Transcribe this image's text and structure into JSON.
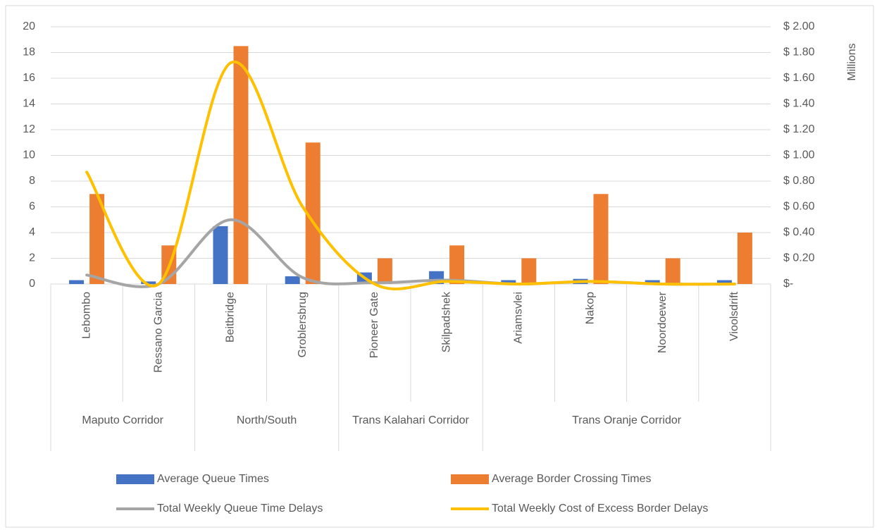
{
  "chart_data": {
    "type": "combo",
    "groups": [
      {
        "label": "Maputo Corridor",
        "categories": [
          "Lebombo",
          "Ressano Garcia"
        ]
      },
      {
        "label": "North/South",
        "categories": [
          "Beitbridge",
          "Groblersbrug"
        ]
      },
      {
        "label": "Trans Kalahari Corridor",
        "categories": [
          "Pioneer Gate",
          "Skilpadshek"
        ]
      },
      {
        "label": "Trans Oranje Corridor",
        "categories": [
          "Ariamsvlei",
          "Nakop",
          "Noordoewer",
          "Vioolsdrift"
        ]
      }
    ],
    "series": [
      {
        "name": "Average Queue Times",
        "kind": "bar",
        "color": "#4472c4",
        "values": [
          0.3,
          0.2,
          4.5,
          0.6,
          0.9,
          1.0,
          0.3,
          0.4,
          0.3,
          0.3
        ]
      },
      {
        "name": "Average Border Crossing Times",
        "kind": "bar",
        "color": "#ed7d31",
        "values": [
          7,
          3,
          18.5,
          11,
          2,
          3,
          2,
          7,
          2,
          4
        ]
      },
      {
        "name": "Total Weekly Queue Time Delays",
        "kind": "line",
        "axis": "y2",
        "color": "#a5a5a5",
        "values": [
          0.07,
          0,
          0.5,
          0.05,
          0.01,
          0.03,
          0,
          0.02,
          0,
          0
        ]
      },
      {
        "name": "Total Weekly Cost of Excess Border Delays",
        "kind": "line",
        "axis": "y2",
        "color": "#ffc000",
        "values": [
          0.87,
          0,
          1.72,
          0.6,
          0,
          0.02,
          0,
          0.02,
          0,
          0
        ]
      }
    ],
    "ylim": [
      0,
      20
    ],
    "yticks": [
      0,
      2,
      4,
      6,
      8,
      10,
      12,
      14,
      16,
      18,
      20
    ],
    "y2label": "Millions",
    "y2lim": [
      0,
      2
    ],
    "y2ticks": [
      {
        "value": 0,
        "label": "$-"
      },
      {
        "value": 0.2,
        "label": "$ 0.20"
      },
      {
        "value": 0.4,
        "label": "$ 0.40"
      },
      {
        "value": 0.6,
        "label": "$ 0.60"
      },
      {
        "value": 0.8,
        "label": "$ 0.80"
      },
      {
        "value": 1.0,
        "label": "$ 1.00"
      },
      {
        "value": 1.2,
        "label": "$ 1.20"
      },
      {
        "value": 1.4,
        "label": "$ 1.40"
      },
      {
        "value": 1.6,
        "label": "$ 1.60"
      },
      {
        "value": 1.8,
        "label": "$ 1.80"
      },
      {
        "value": 2.0,
        "label": "$ 2.00"
      }
    ],
    "grid": true
  }
}
